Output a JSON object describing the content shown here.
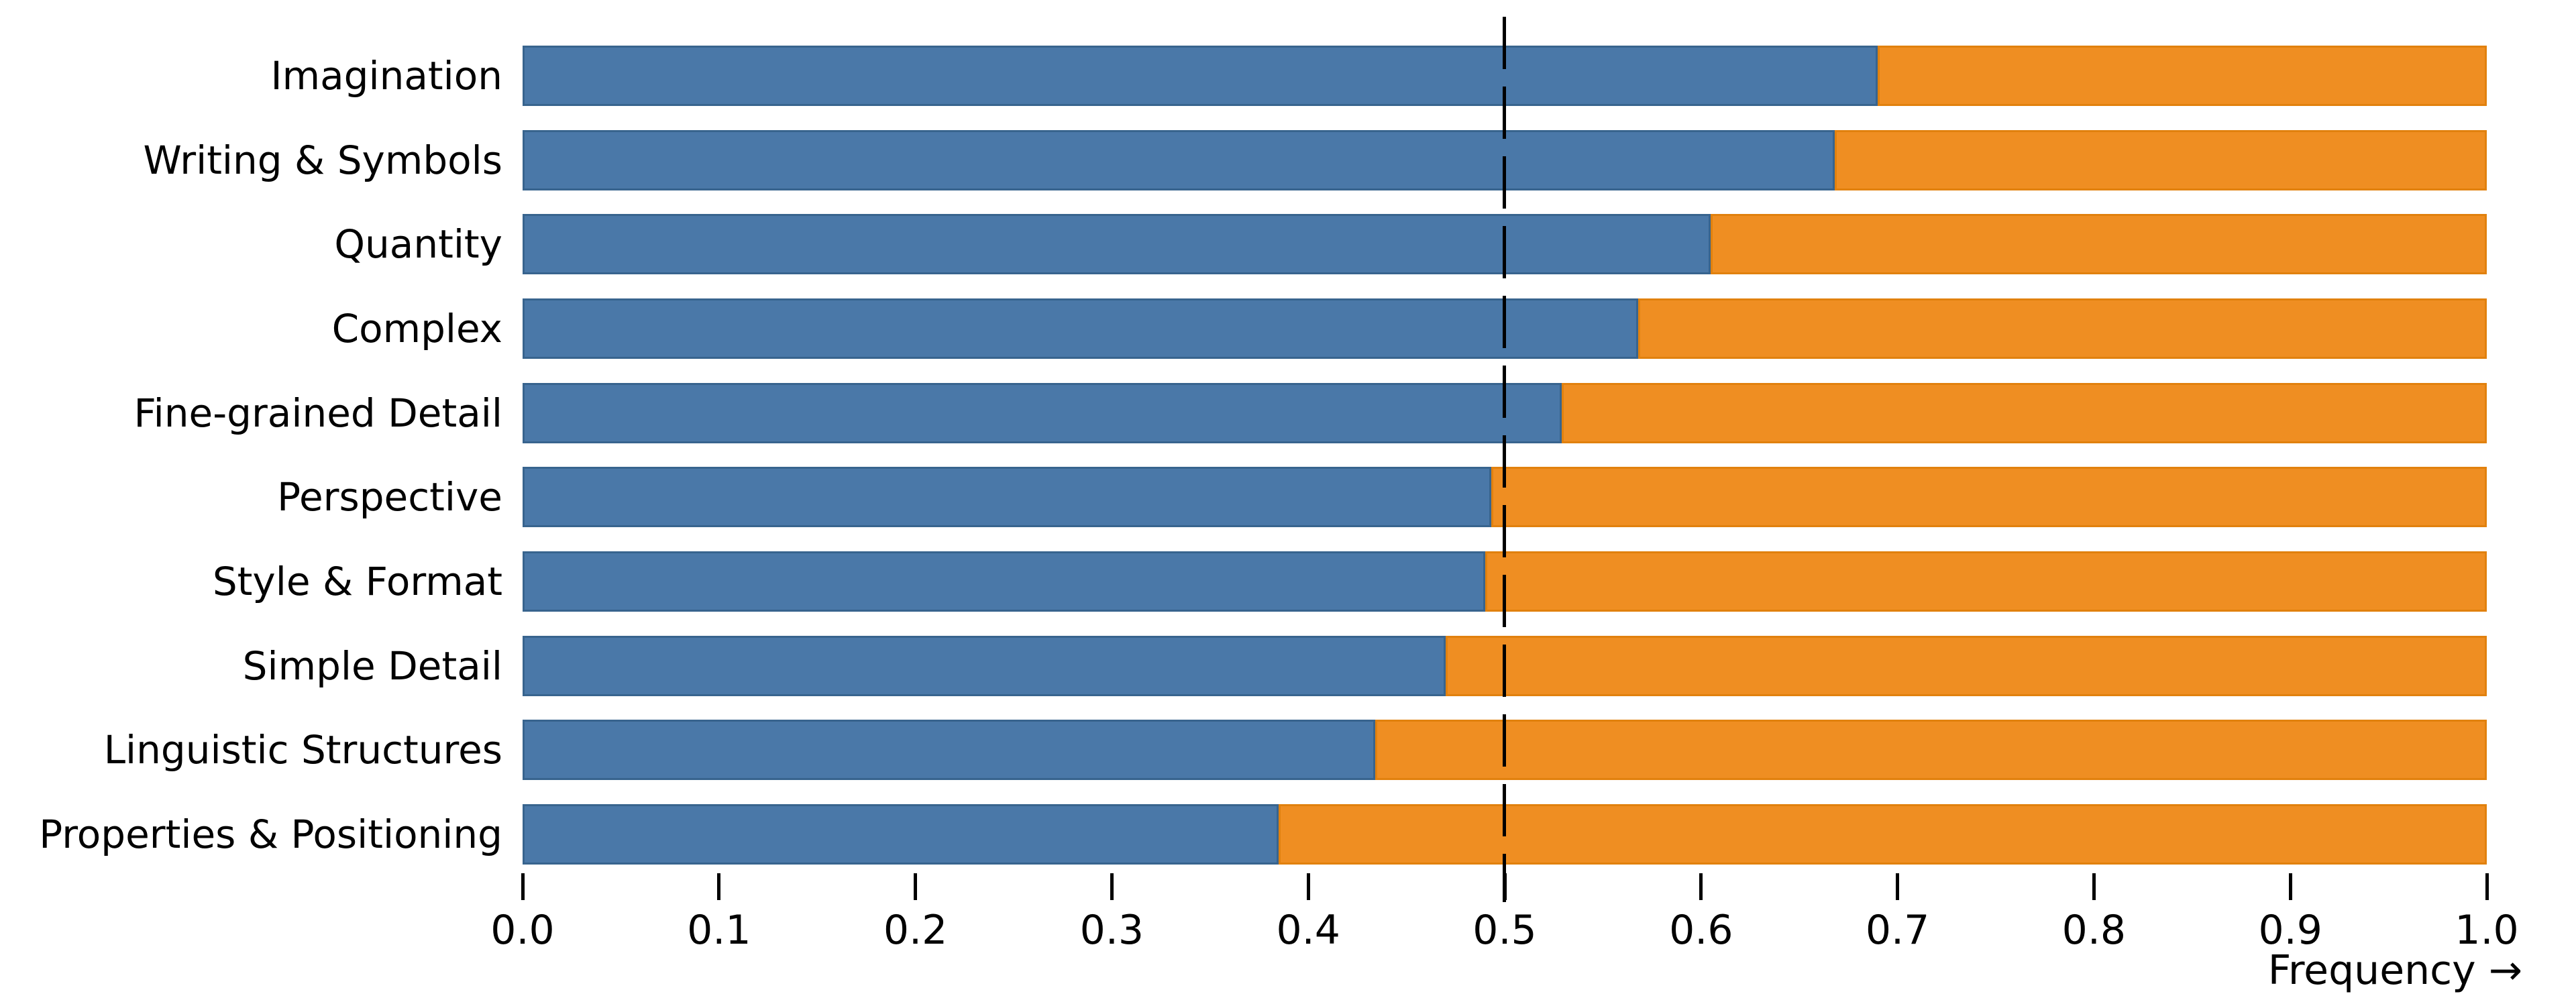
{
  "chart_data": {
    "type": "bar",
    "orientation": "horizontal",
    "stacked": true,
    "title": "",
    "xlabel": "Frequency →",
    "ylabel": "",
    "xlim": [
      0.0,
      1.0
    ],
    "xticks": [
      "0.0",
      "0.1",
      "0.2",
      "0.3",
      "0.4",
      "0.5",
      "0.6",
      "0.7",
      "0.8",
      "0.9",
      "1.0"
    ],
    "reference_line_x": 0.5,
    "grid": false,
    "legend": "none",
    "categories": [
      "Imagination",
      "Writing & Symbols",
      "Quantity",
      "Complex",
      "Fine-grained Detail",
      "Perspective",
      "Style & Format",
      "Simple Detail",
      "Linguistic Structures",
      "Properties & Positioning"
    ],
    "series": [
      {
        "name": "left-segment",
        "color": "#4a78a8",
        "edge_color": "#38648e",
        "values": [
          0.69,
          0.668,
          0.605,
          0.568,
          0.529,
          0.493,
          0.49,
          0.47,
          0.434,
          0.385
        ]
      },
      {
        "name": "right-segment",
        "color": "#ef8e22",
        "edge_color": "#e1810e",
        "values": [
          0.31,
          0.332,
          0.395,
          0.432,
          0.471,
          0.507,
          0.51,
          0.53,
          0.566,
          0.615
        ]
      }
    ],
    "reference_line_color": "#000000"
  }
}
